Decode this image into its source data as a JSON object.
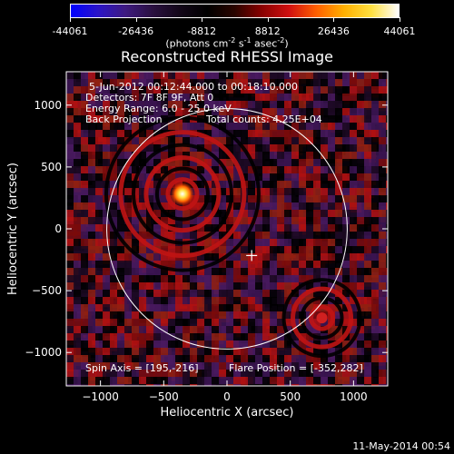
{
  "colorbar": {
    "ticks": [
      "-44061",
      "-26436",
      "-8812",
      "8812",
      "26436",
      "44061"
    ],
    "tick_values": [
      -44061,
      -26436,
      -8812,
      8812,
      26436,
      44061
    ],
    "units_prefix": "(photons cm",
    "units_sup1": "-2",
    "units_mid1": " s",
    "units_sup2": "-1",
    "units_mid2": " asec",
    "units_sup3": "-2",
    "units_suffix": ")",
    "colors": [
      "#0000ff",
      "#2b14c8",
      "#3e1a80",
      "#2a1040",
      "#120618",
      "#000000",
      "#2a0400",
      "#8a0000",
      "#d01010",
      "#ff6000",
      "#ffb000",
      "#ffe040",
      "#ffffff"
    ]
  },
  "chart_data": {
    "type": "heatmap",
    "title": "Reconstructed RHESSI Image",
    "xlabel": "Heliocentric X (arcsec)",
    "ylabel": "Heliocentric Y (arcsec)",
    "xlim": [
      -1270,
      1270
    ],
    "ylim": [
      -1270,
      1270
    ],
    "xticks": [
      -1000,
      -500,
      0,
      500,
      1000
    ],
    "xtick_labels": [
      "−1000",
      "−500",
      "0",
      "500",
      "1000"
    ],
    "yticks": [
      -1000,
      -500,
      0,
      500,
      1000
    ],
    "ytick_labels": [
      "−1000",
      "−500",
      "0",
      "500",
      "1000"
    ],
    "solar_limb_radius_arcsec": 950,
    "solar_center": [
      0,
      0
    ],
    "spin_axis": [
      195,
      -216
    ],
    "sources": [
      {
        "x": -352,
        "y": 282,
        "peak": 44061
      },
      {
        "x": 750,
        "y": -720,
        "peak": 20000
      }
    ],
    "annotations": {
      "time_range": "5-Jun-2012 00:12:44.000 to 00:18:10.000",
      "detectors": "Detectors: 7F 8F 9F, Att 0",
      "energy_range": "Energy Range: 6.0 - 25.0 keV",
      "algorithm": "Back Projection",
      "total_counts": "Total counts: 4.25E+04",
      "spin_axis": "Spin Axis = [195,-216]",
      "flare_position": "Flare Position = [-352,282]"
    }
  },
  "footer": {
    "date": "11-May-2014 00:54"
  }
}
